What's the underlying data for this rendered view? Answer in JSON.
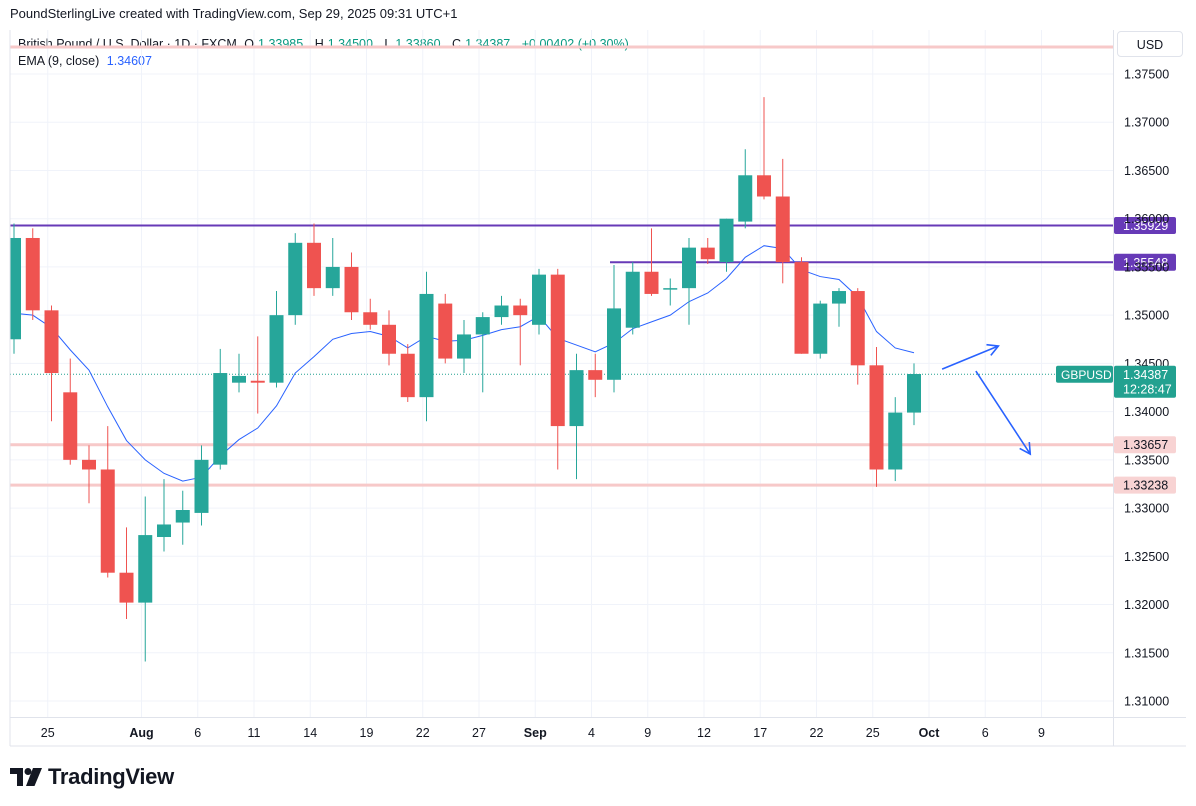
{
  "header": {
    "attribution": "PoundSterlingLive created with TradingView.com, Sep 29, 2025 09:31 UTC+1"
  },
  "legend": {
    "symbol": "British Pound / U.S. Dollar · 1D · FXCM",
    "open_label": "O",
    "open": "1.33985",
    "high_label": "H",
    "high": "1.34500",
    "low_label": "L",
    "low": "1.33860",
    "close_label": "C",
    "close": "1.34387",
    "change": "+0.00402 (+0.30%)",
    "ema_label": "EMA (9, close)",
    "ema_value": "1.34607"
  },
  "currency": "USD",
  "brand": {
    "name": "TradingView"
  },
  "colors": {
    "up": "#26a69a",
    "down": "#ef5350",
    "ema": "#2962ff",
    "level_purple": "#673ab7",
    "level_pink": "#f7c9c9",
    "price_tag": "#22a190",
    "pink_tag": "#f8d3d3"
  },
  "chart_data": {
    "type": "candlestick",
    "symbol": "GBPUSD",
    "ylim": [
      1.306,
      1.378
    ],
    "y_ticks": [
      "1.37500",
      "1.37000",
      "1.36500",
      "1.36000",
      "1.35500",
      "1.35000",
      "1.34500",
      "1.34000",
      "1.33500",
      "1.33000",
      "1.32500",
      "1.32000",
      "1.31500",
      "1.31000"
    ],
    "x_ticks": [
      "25",
      "Aug",
      "6",
      "11",
      "14",
      "19",
      "22",
      "27",
      "Sep",
      "4",
      "9",
      "12",
      "17",
      "22",
      "25",
      "Oct",
      "6",
      "9"
    ],
    "candles": [
      {
        "o": 1.3475,
        "h": 1.3595,
        "l": 1.346,
        "c": 1.358
      },
      {
        "o": 1.358,
        "h": 1.359,
        "l": 1.3495,
        "c": 1.3505
      },
      {
        "o": 1.3505,
        "h": 1.351,
        "l": 1.339,
        "c": 1.344
      },
      {
        "o": 1.342,
        "h": 1.3455,
        "l": 1.3345,
        "c": 1.335
      },
      {
        "o": 1.335,
        "h": 1.3365,
        "l": 1.3305,
        "c": 1.334
      },
      {
        "o": 1.334,
        "h": 1.3385,
        "l": 1.3228,
        "c": 1.3233
      },
      {
        "o": 1.3233,
        "h": 1.328,
        "l": 1.3185,
        "c": 1.3202
      },
      {
        "o": 1.3202,
        "h": 1.3312,
        "l": 1.3141,
        "c": 1.3272
      },
      {
        "o": 1.327,
        "h": 1.333,
        "l": 1.3255,
        "c": 1.3283
      },
      {
        "o": 1.3285,
        "h": 1.3318,
        "l": 1.3262,
        "c": 1.3298
      },
      {
        "o": 1.3295,
        "h": 1.3365,
        "l": 1.3282,
        "c": 1.335
      },
      {
        "o": 1.3345,
        "h": 1.3465,
        "l": 1.334,
        "c": 1.344
      },
      {
        "o": 1.343,
        "h": 1.346,
        "l": 1.342,
        "c": 1.3437
      },
      {
        "o": 1.3432,
        "h": 1.3478,
        "l": 1.3398,
        "c": 1.343
      },
      {
        "o": 1.343,
        "h": 1.3525,
        "l": 1.3425,
        "c": 1.35
      },
      {
        "o": 1.35,
        "h": 1.3585,
        "l": 1.349,
        "c": 1.3575
      },
      {
        "o": 1.3575,
        "h": 1.3595,
        "l": 1.352,
        "c": 1.3528
      },
      {
        "o": 1.3528,
        "h": 1.358,
        "l": 1.352,
        "c": 1.355
      },
      {
        "o": 1.355,
        "h": 1.3565,
        "l": 1.3495,
        "c": 1.3503
      },
      {
        "o": 1.3503,
        "h": 1.3517,
        "l": 1.3485,
        "c": 1.349
      },
      {
        "o": 1.349,
        "h": 1.3505,
        "l": 1.3448,
        "c": 1.346
      },
      {
        "o": 1.346,
        "h": 1.347,
        "l": 1.341,
        "c": 1.3415
      },
      {
        "o": 1.3415,
        "h": 1.3545,
        "l": 1.339,
        "c": 1.3522
      },
      {
        "o": 1.3512,
        "h": 1.3522,
        "l": 1.345,
        "c": 1.3455
      },
      {
        "o": 1.3455,
        "h": 1.3495,
        "l": 1.344,
        "c": 1.348
      },
      {
        "o": 1.348,
        "h": 1.3503,
        "l": 1.342,
        "c": 1.3498
      },
      {
        "o": 1.3498,
        "h": 1.352,
        "l": 1.349,
        "c": 1.351
      },
      {
        "o": 1.351,
        "h": 1.3517,
        "l": 1.3448,
        "c": 1.35
      },
      {
        "o": 1.349,
        "h": 1.3548,
        "l": 1.348,
        "c": 1.3542
      },
      {
        "o": 1.3542,
        "h": 1.3548,
        "l": 1.334,
        "c": 1.3385
      },
      {
        "o": 1.3385,
        "h": 1.346,
        "l": 1.333,
        "c": 1.3443
      },
      {
        "o": 1.3443,
        "h": 1.346,
        "l": 1.3415,
        "c": 1.3433
      },
      {
        "o": 1.3433,
        "h": 1.3552,
        "l": 1.342,
        "c": 1.3507
      },
      {
        "o": 1.3487,
        "h": 1.3555,
        "l": 1.348,
        "c": 1.3545
      },
      {
        "o": 1.3545,
        "h": 1.359,
        "l": 1.352,
        "c": 1.3522
      },
      {
        "o": 1.3527,
        "h": 1.3538,
        "l": 1.351,
        "c": 1.3528
      },
      {
        "o": 1.3528,
        "h": 1.358,
        "l": 1.349,
        "c": 1.357
      },
      {
        "o": 1.357,
        "h": 1.358,
        "l": 1.3553,
        "c": 1.3558
      },
      {
        "o": 1.3555,
        "h": 1.36,
        "l": 1.3545,
        "c": 1.36
      },
      {
        "o": 1.3597,
        "h": 1.3672,
        "l": 1.359,
        "c": 1.3645
      },
      {
        "o": 1.3645,
        "h": 1.3726,
        "l": 1.362,
        "c": 1.3623
      },
      {
        "o": 1.3623,
        "h": 1.3662,
        "l": 1.3533,
        "c": 1.3555
      },
      {
        "o": 1.3555,
        "h": 1.356,
        "l": 1.346,
        "c": 1.346
      },
      {
        "o": 1.346,
        "h": 1.3515,
        "l": 1.3455,
        "c": 1.3512
      },
      {
        "o": 1.3512,
        "h": 1.3528,
        "l": 1.3488,
        "c": 1.3525
      },
      {
        "o": 1.3525,
        "h": 1.3528,
        "l": 1.3428,
        "c": 1.3448
      },
      {
        "o": 1.3448,
        "h": 1.3467,
        "l": 1.3322,
        "c": 1.334
      },
      {
        "o": 1.334,
        "h": 1.3415,
        "l": 1.3328,
        "c": 1.3399
      },
      {
        "o": 1.3399,
        "h": 1.345,
        "l": 1.3386,
        "c": 1.3439
      }
    ],
    "ema9": [
      1.3502,
      1.35,
      1.3487,
      1.3464,
      1.3443,
      1.3405,
      1.337,
      1.335,
      1.3336,
      1.3328,
      1.3332,
      1.3354,
      1.3371,
      1.3383,
      1.3406,
      1.344,
      1.3457,
      1.3475,
      1.3481,
      1.3483,
      1.3478,
      1.3466,
      1.3478,
      1.3473,
      1.3474,
      1.3479,
      1.3485,
      1.3488,
      1.3499,
      1.3476,
      1.3469,
      1.3462,
      1.3471,
      1.3486,
      1.3493,
      1.35,
      1.3514,
      1.3523,
      1.3538,
      1.356,
      1.3572,
      1.3569,
      1.3547,
      1.354,
      1.3537,
      1.3519,
      1.3483,
      1.3466,
      1.3461
    ],
    "levels": [
      {
        "label": "1.35929",
        "value": 1.35929,
        "style": "purple",
        "span": "full"
      },
      {
        "label": "1.35548",
        "value": 1.35548,
        "style": "purple",
        "span": "from-sep"
      },
      {
        "label": "1.33657",
        "value": 1.33657,
        "style": "pink",
        "span": "full"
      },
      {
        "label": "1.33238",
        "value": 1.33238,
        "style": "pink",
        "span": "full"
      }
    ],
    "top_band_value": 1.3778,
    "current_price": {
      "symbol": "GBPUSD",
      "value": "1.34387",
      "countdown": "12:28:47"
    },
    "projections": [
      {
        "from": [
          49.5,
          1.3444
        ],
        "to": [
          52.5,
          1.3468
        ],
        "direction": "up"
      },
      {
        "from": [
          51.3,
          1.3442
        ],
        "to": [
          54.2,
          1.3356
        ],
        "direction": "down"
      }
    ]
  }
}
